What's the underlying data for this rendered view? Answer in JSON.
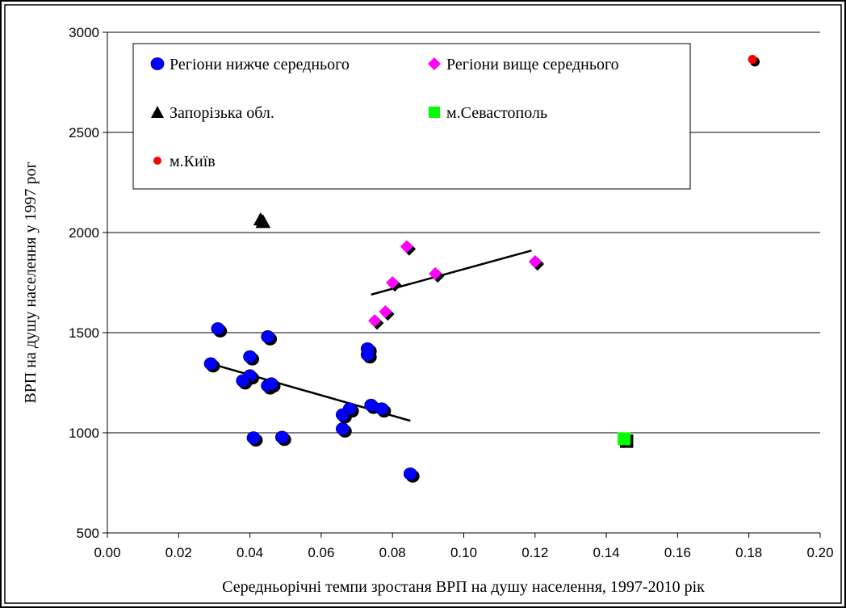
{
  "chart_data": {
    "type": "scatter",
    "xlabel": "Середньорічні темпи зростаня ВРП на душу населення, 1997-2010 рік",
    "ylabel": "ВРП на душу населення у 1997 рог",
    "xlim": [
      0,
      0.2
    ],
    "ylim": [
      500,
      3000
    ],
    "x_ticks": [
      "0.00",
      "0.02",
      "0.04",
      "0.06",
      "0.08",
      "0.10",
      "0.12",
      "0.14",
      "0.16",
      "0.18",
      "0.20"
    ],
    "y_ticks": [
      "500",
      "1000",
      "1500",
      "2000",
      "2500",
      "3000"
    ],
    "grid": "horizontal",
    "legend_position": "top-left",
    "series": [
      {
        "name": "Регіони нижче середнього",
        "marker": "circle",
        "color": "#0000ff",
        "points": [
          {
            "x": 0.031,
            "y": 1520
          },
          {
            "x": 0.029,
            "y": 1345
          },
          {
            "x": 0.04,
            "y": 1380
          },
          {
            "x": 0.04,
            "y": 1285
          },
          {
            "x": 0.038,
            "y": 1260
          },
          {
            "x": 0.045,
            "y": 1480
          },
          {
            "x": 0.045,
            "y": 1235
          },
          {
            "x": 0.046,
            "y": 1245
          },
          {
            "x": 0.041,
            "y": 975
          },
          {
            "x": 0.049,
            "y": 978
          },
          {
            "x": 0.066,
            "y": 1090
          },
          {
            "x": 0.066,
            "y": 1020
          },
          {
            "x": 0.068,
            "y": 1120
          },
          {
            "x": 0.073,
            "y": 1420
          },
          {
            "x": 0.073,
            "y": 1390
          },
          {
            "x": 0.074,
            "y": 1138
          },
          {
            "x": 0.077,
            "y": 1120
          },
          {
            "x": 0.085,
            "y": 795
          }
        ]
      },
      {
        "name": "Регіони вище середнього",
        "marker": "diamond",
        "color": "#ff00ff",
        "points": [
          {
            "x": 0.075,
            "y": 1560
          },
          {
            "x": 0.078,
            "y": 1605
          },
          {
            "x": 0.08,
            "y": 1750
          },
          {
            "x": 0.084,
            "y": 1930
          },
          {
            "x": 0.092,
            "y": 1795
          },
          {
            "x": 0.12,
            "y": 1855
          }
        ]
      },
      {
        "name": "Запорізька обл.",
        "marker": "triangle",
        "color": "#000000",
        "points": [
          {
            "x": 0.043,
            "y": 2065
          }
        ]
      },
      {
        "name": "м.Севастополь",
        "marker": "square",
        "color": "#00ff00",
        "points": [
          {
            "x": 0.145,
            "y": 970
          }
        ]
      },
      {
        "name": "м.Київ",
        "marker": "circle-small",
        "color": "#ff0000",
        "points": [
          {
            "x": 0.181,
            "y": 2865
          }
        ]
      }
    ],
    "trendlines": [
      {
        "series": "Регіони нижче середнього",
        "x": [
          0.029,
          0.085
        ],
        "y": [
          1345,
          1060
        ]
      },
      {
        "series": "Регіони вище середнього",
        "x": [
          0.074,
          0.119
        ],
        "y": [
          1690,
          1910
        ]
      }
    ]
  }
}
